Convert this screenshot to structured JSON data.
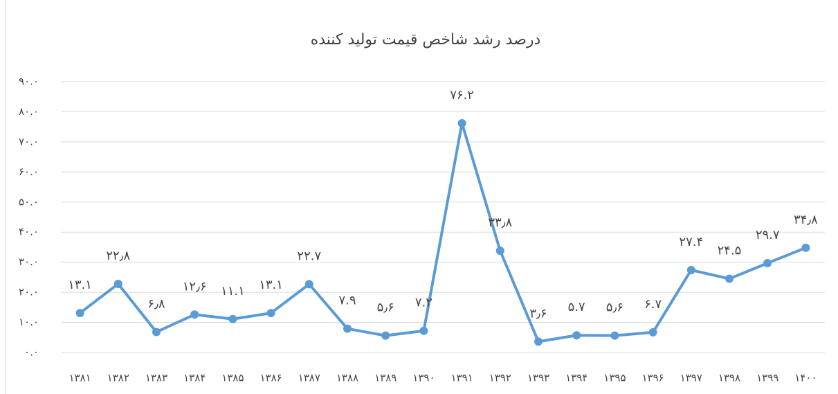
{
  "chart_data": {
    "type": "line",
    "title": "درصد رشد شاخص قیمت تولید کننده",
    "categories": [
      "۱۳۸۱",
      "۱۳۸۲",
      "۱۳۸۳",
      "۱۳۸۴",
      "۱۳۸۵",
      "۱۳۸۶",
      "۱۳۸۷",
      "۱۳۸۸",
      "۱۳۸۹",
      "۱۳۹۰",
      "۱۳۹۱",
      "۱۳۹۲",
      "۱۳۹۳",
      "۱۳۹۴",
      "۱۳۹۵",
      "۱۳۹۶",
      "۱۳۹۷",
      "۱۳۹۸",
      "۱۳۹۹",
      "۱۴۰۰"
    ],
    "values": [
      13.1,
      22.8,
      6.8,
      12.6,
      11.1,
      13.1,
      22.7,
      7.9,
      5.6,
      7.2,
      76.2,
      33.8,
      3.6,
      5.7,
      5.6,
      6.7,
      27.4,
      24.5,
      29.7,
      34.8
    ],
    "value_labels": [
      "۱۳.۱",
      "۲۲٫۸",
      "۶٫۸",
      "۱۲٫۶",
      "۱۱.۱",
      "۱۳.۱",
      "۲۲.۷",
      "۷.۹",
      "۵٫۶",
      "۷.۲",
      "۷۶.۲",
      "۳۳٫۸",
      "۳٫۶",
      "۵.۷",
      "۵٫۶",
      "۶.۷",
      "۲۷.۴",
      "۲۴.۵",
      "۲۹.۷",
      "۳۴٫۸"
    ],
    "color": "#5b9bd5",
    "ylim": [
      0,
      90
    ],
    "yticks": [
      {
        "value": 0,
        "label": "۰.۰"
      },
      {
        "value": 10,
        "label": "۱۰.۰"
      },
      {
        "value": 20,
        "label": "۲۰.۰"
      },
      {
        "value": 30,
        "label": "۳۰.۰"
      },
      {
        "value": 40,
        "label": "۴۰.۰"
      },
      {
        "value": 50,
        "label": "۵۰.۰"
      },
      {
        "value": 60,
        "label": "۶۰.۰"
      },
      {
        "value": 70,
        "label": "۷۰.۰"
      },
      {
        "value": 80,
        "label": "۸۰.۰"
      },
      {
        "value": 90,
        "label": "۹۰.۰"
      }
    ],
    "grid": true
  }
}
